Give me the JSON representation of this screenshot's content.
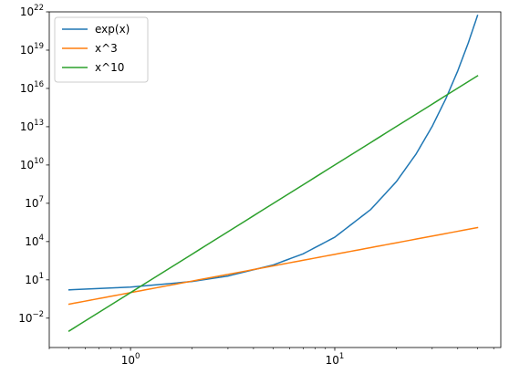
{
  "chart_data": {
    "type": "line",
    "title": "",
    "xlabel": "",
    "ylabel": "",
    "xscale": "log",
    "yscale": "log",
    "xlim": [
      0.4,
      65
    ],
    "ylim": [
      5e-05,
      1e+22
    ],
    "grid": false,
    "legend_position": "top-left",
    "x_ticks": [
      {
        "value": 1,
        "base": "10",
        "exp": "0"
      },
      {
        "value": 10,
        "base": "10",
        "exp": "1"
      }
    ],
    "y_ticks": [
      {
        "value": 0.01,
        "base": "10",
        "exp": "−2"
      },
      {
        "value": 10,
        "base": "10",
        "exp": "1"
      },
      {
        "value": 10000,
        "base": "10",
        "exp": "4"
      },
      {
        "value": 10000000.0,
        "base": "10",
        "exp": "7"
      },
      {
        "value": 10000000000.0,
        "base": "10",
        "exp": "10"
      },
      {
        "value": 10000000000000.0,
        "base": "10",
        "exp": "13"
      },
      {
        "value": 1e+16,
        "base": "10",
        "exp": "16"
      },
      {
        "value": 1e+19,
        "base": "10",
        "exp": "19"
      },
      {
        "value": 1e+22,
        "base": "10",
        "exp": "22"
      }
    ],
    "series": [
      {
        "name": "exp(x)",
        "color": "#1f77b4",
        "x": [
          0.5,
          1,
          2,
          3,
          5,
          7,
          10,
          15,
          20,
          25,
          30,
          35,
          40,
          45,
          50
        ],
        "y": [
          1.6487,
          2.7183,
          7.389,
          20.09,
          148.4,
          1096.6,
          22026,
          3269017,
          485000000.0,
          72000000000.0,
          10700000000000.0,
          1590000000000000.0,
          2.35e+17,
          3.49e+19,
          5.18e+21
        ]
      },
      {
        "name": "x^3",
        "color": "#ff7f0e",
        "x": [
          0.5,
          1,
          2,
          5,
          10,
          20,
          50
        ],
        "y": [
          0.125,
          1,
          8,
          125,
          1000,
          8000,
          125000
        ]
      },
      {
        "name": "x^10",
        "color": "#2ca02c",
        "x": [
          0.5,
          1,
          2,
          5,
          10,
          20,
          50
        ],
        "y": [
          0.0009766,
          1,
          1024,
          9765625,
          10000000000.0,
          10240000000000.0,
          9.77e+16
        ]
      }
    ]
  }
}
